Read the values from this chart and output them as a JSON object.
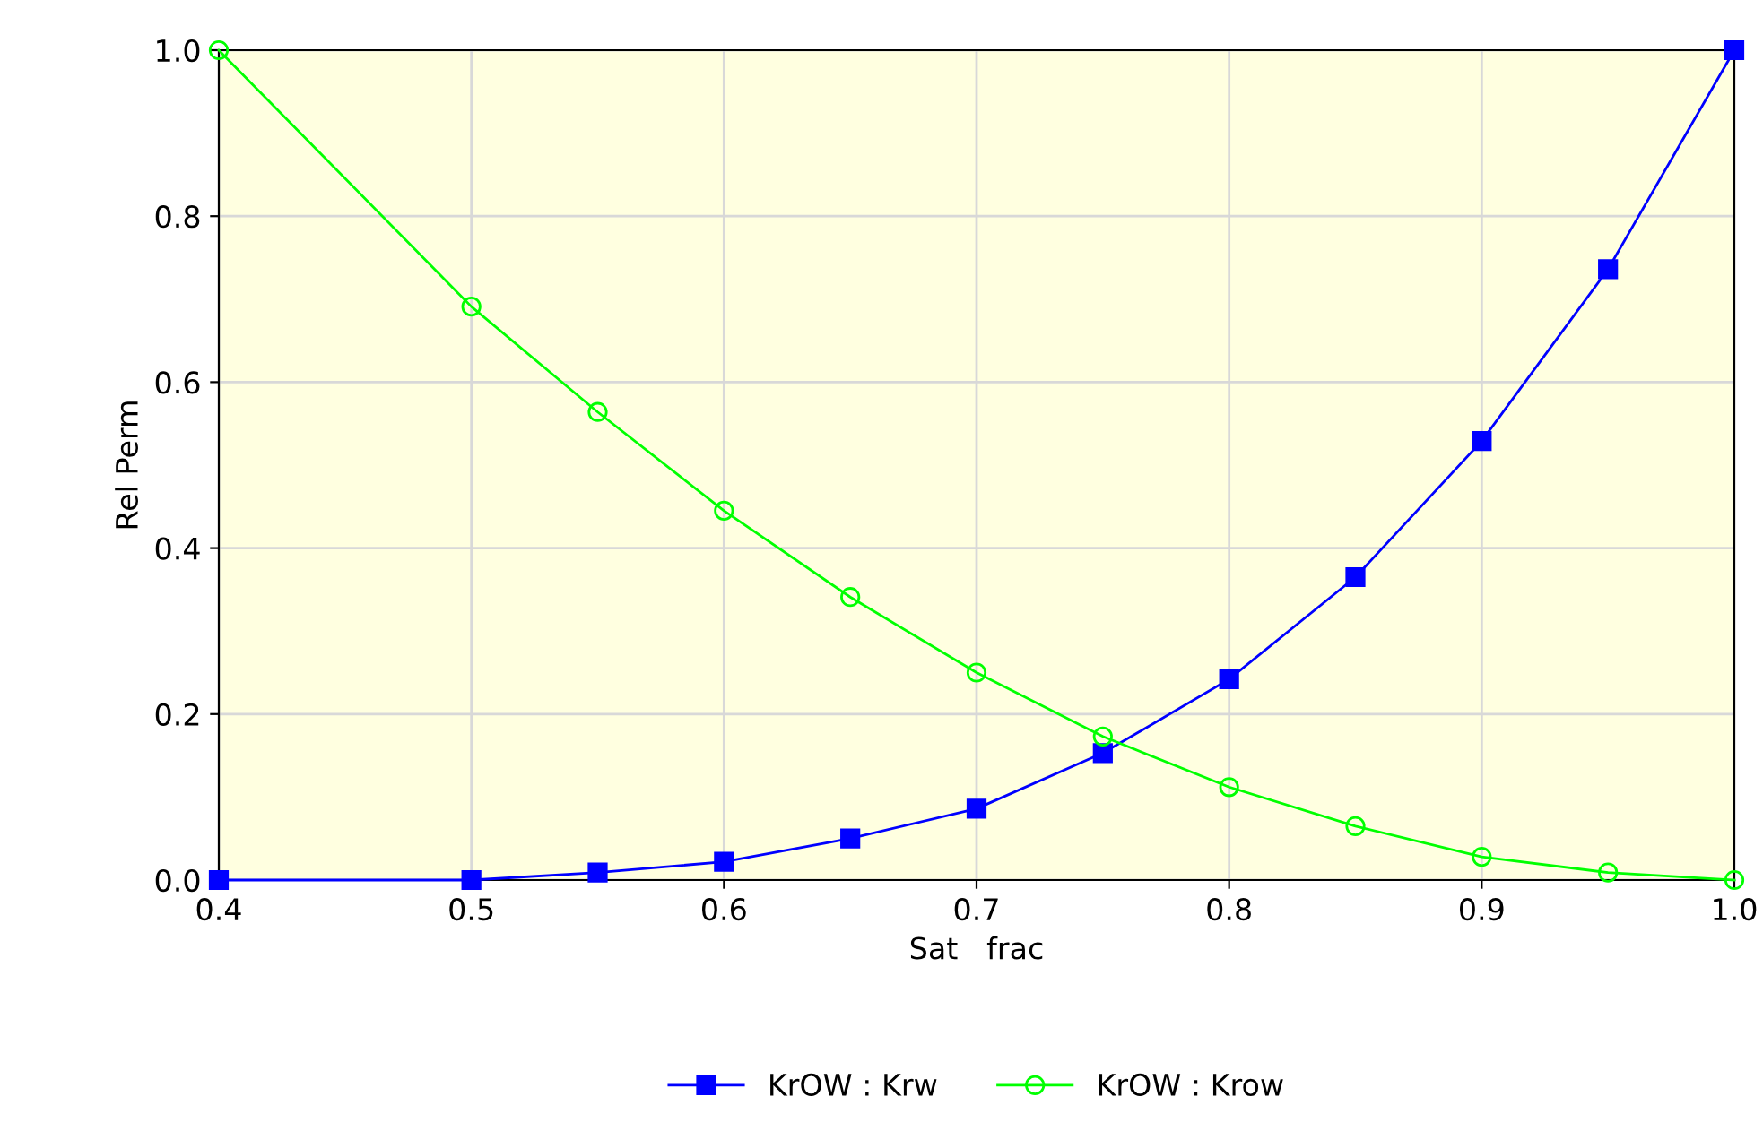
{
  "chart_data": {
    "type": "line",
    "xlabel": "Sat   frac",
    "ylabel": "Rel Perm",
    "x": [
      0.4,
      0.5,
      0.55,
      0.6,
      0.65,
      0.7,
      0.75,
      0.8,
      0.85,
      0.9,
      0.95,
      1.0
    ],
    "series": [
      {
        "name": "KrOW : Krw",
        "color": "#0000ff",
        "marker": "square",
        "values": [
          0,
          0,
          0.009,
          0.022,
          0.05,
          0.086,
          0.153,
          0.242,
          0.365,
          0.529,
          0.736,
          1.0
        ]
      },
      {
        "name": "KrOW : Krow",
        "color": "#00ff00",
        "marker": "circle",
        "values": [
          1.0,
          0.691,
          0.564,
          0.445,
          0.341,
          0.25,
          0.173,
          0.112,
          0.065,
          0.028,
          0.009,
          0
        ]
      }
    ],
    "xlim": [
      0.4,
      1.0
    ],
    "xticks": [
      0.4,
      0.5,
      0.6,
      0.7,
      0.8,
      0.9,
      {
        "value": 1,
        "label": "1.0"
      }
    ],
    "ylim": [
      0.0,
      1.0
    ],
    "yticks": [
      {
        "value": 0,
        "label": "0.0"
      },
      {
        "value": 0.2,
        "label": "0.2"
      },
      {
        "value": 0.4,
        "label": "0.4"
      },
      {
        "value": 0.6,
        "label": "0.6"
      },
      {
        "value": 0.8,
        "label": "0.8"
      },
      {
        "value": 1,
        "label": "1.0"
      }
    ],
    "grid": true,
    "legend": "bottom"
  }
}
